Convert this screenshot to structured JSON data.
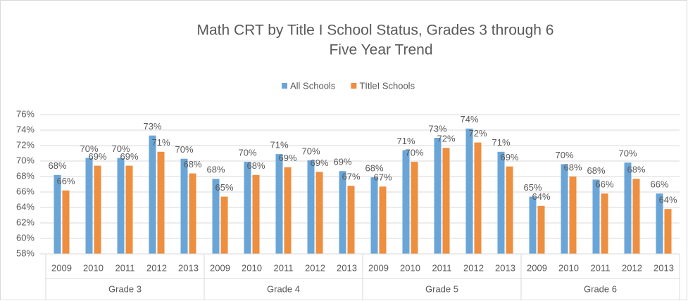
{
  "chart_data": {
    "type": "bar",
    "title": "Math CRT by Title I School Status, Grades 3 through 6",
    "subtitle": "Five Year Trend",
    "categories": [
      "2009",
      "2010",
      "2011",
      "2012",
      "2013",
      "2009",
      "2010",
      "2011",
      "2012",
      "2013",
      "2009",
      "2010",
      "2011",
      "2012",
      "2013",
      "2009",
      "2010",
      "2011",
      "2012",
      "2013"
    ],
    "category_groups": [
      "Grade 3",
      "Grade 4",
      "Grade 5",
      "Grade 6"
    ],
    "series": [
      {
        "name": "All Schools",
        "color": "#6aa5d8",
        "values": [
          68.2,
          70.4,
          70.4,
          73.3,
          70.3,
          67.7,
          69.9,
          70.9,
          70.1,
          68.7,
          67.9,
          71.4,
          73.0,
          74.2,
          71.2,
          65.4,
          69.6,
          67.6,
          69.8,
          65.8
        ],
        "value_labels": [
          "68%",
          "70%",
          "70%",
          "73%",
          "70%",
          "68%",
          "70%",
          "71%",
          "70%",
          "69%",
          "68%",
          "71%",
          "73%",
          "74%",
          "71%",
          "65%",
          "70%",
          "68%",
          "70%",
          "66%"
        ]
      },
      {
        "name": "TItleI Schools",
        "color": "#ee8e3f",
        "values": [
          66.2,
          69.4,
          69.4,
          71.2,
          68.4,
          65.4,
          68.2,
          69.2,
          68.6,
          66.8,
          66.7,
          69.9,
          71.7,
          72.4,
          69.3,
          64.2,
          68.0,
          65.8,
          67.7,
          63.8
        ],
        "value_labels": [
          "66%",
          "69%",
          "69%",
          "71%",
          "68%",
          "65%",
          "68%",
          "69%",
          "69%",
          "67%",
          "67%",
          "70%",
          "72%",
          "72%",
          "69%",
          "64%",
          "68%",
          "66%",
          "68%",
          "64%"
        ]
      }
    ],
    "ylim": [
      58,
      76
    ],
    "yticks": [
      {
        "value": 58,
        "label": "58%"
      },
      {
        "value": 60,
        "label": "60%"
      },
      {
        "value": 62,
        "label": "62%"
      },
      {
        "value": 64,
        "label": "64%"
      },
      {
        "value": 66,
        "label": "66%"
      },
      {
        "value": 68,
        "label": "68%"
      },
      {
        "value": 70,
        "label": "70%"
      },
      {
        "value": 72,
        "label": "72%"
      },
      {
        "value": 74,
        "label": "74%"
      },
      {
        "value": 76,
        "label": "76%"
      }
    ],
    "grid": true,
    "legend": "top"
  }
}
